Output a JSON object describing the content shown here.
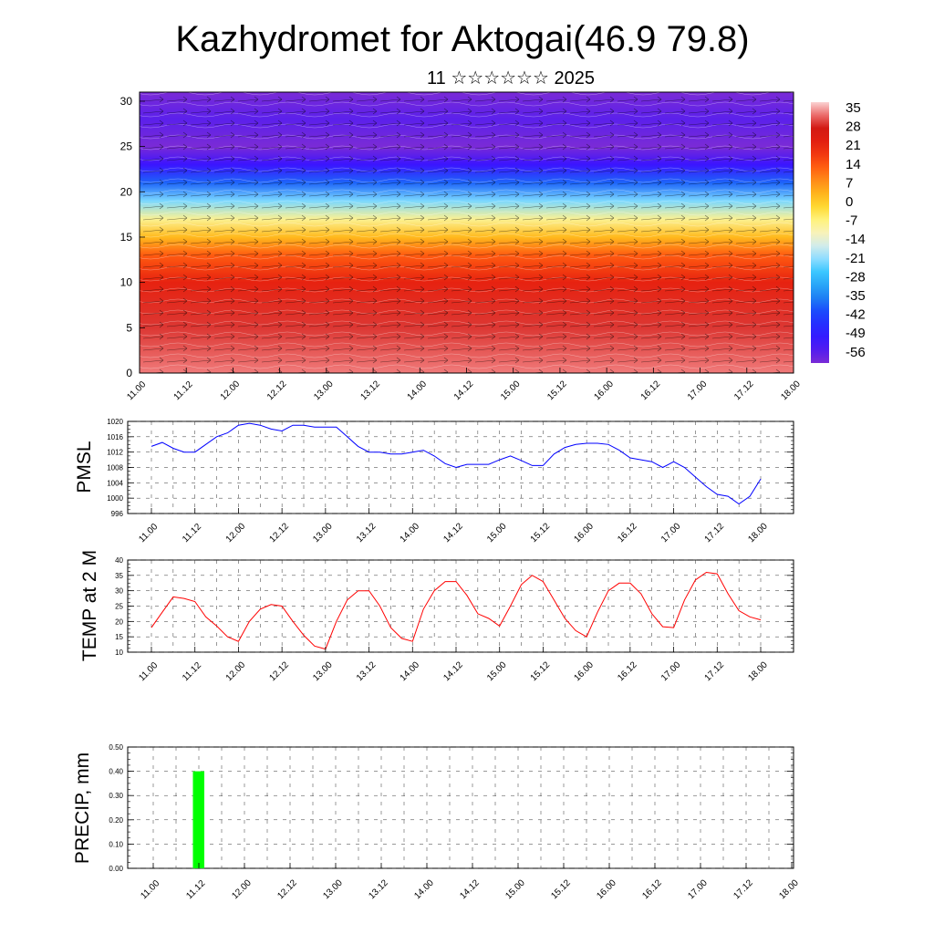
{
  "header": {
    "title": "Kazhydromet for Aktogai(46.9 79.8)",
    "subtitle": "11 ☆☆☆☆☆☆ 2025"
  },
  "time_labels": [
    "11.00",
    "11.12",
    "12.00",
    "12.12",
    "13.00",
    "13.12",
    "14.00",
    "14.12",
    "15.00",
    "15.12",
    "16.00",
    "16.12",
    "17.00",
    "17.12",
    "18.00"
  ],
  "chart_data": [
    {
      "type": "heatmap",
      "name": "cross-section",
      "x_categories": [
        "11.00",
        "11.12",
        "12.00",
        "12.12",
        "13.00",
        "13.12",
        "14.00",
        "14.12",
        "15.00",
        "15.12",
        "16.00",
        "16.12",
        "17.00",
        "17.12",
        "18.00"
      ],
      "y_ticks": [
        0,
        5,
        10,
        15,
        20,
        25,
        30
      ],
      "ylim": [
        0,
        31
      ],
      "colorbar_labels": [
        "35",
        "28",
        "21",
        "14",
        "7",
        "0",
        "-7",
        "-14",
        "-21",
        "-28",
        "-35",
        "-42",
        "-49",
        "-56"
      ],
      "value_range": [
        -60,
        38
      ],
      "approx_profile": [
        {
          "y": 0,
          "value": 34
        },
        {
          "y": 5,
          "value": 30
        },
        {
          "y": 10,
          "value": 22
        },
        {
          "y": 13,
          "value": 14
        },
        {
          "y": 15,
          "value": 3
        },
        {
          "y": 17,
          "value": -8
        },
        {
          "y": 19,
          "value": -22
        },
        {
          "y": 21,
          "value": -38
        },
        {
          "y": 23,
          "value": -52
        },
        {
          "y": 25,
          "value": -62
        },
        {
          "y": 28,
          "value": -56
        },
        {
          "y": 31,
          "value": -60
        }
      ]
    },
    {
      "type": "line",
      "ylabel": "PMSL",
      "ylim": [
        996,
        1020
      ],
      "y_ticks": [
        996,
        1000,
        1004,
        1008,
        1012,
        1016,
        1020
      ],
      "series": [
        {
          "color": "#0000ff",
          "x": [
            0,
            3,
            6,
            9,
            12,
            15,
            18,
            21,
            24,
            27,
            30,
            33,
            36,
            39,
            42,
            45,
            48,
            51,
            54,
            57,
            60,
            63,
            66,
            69,
            72,
            75,
            78,
            81,
            84,
            87,
            90,
            93,
            96,
            99,
            102,
            105,
            108,
            111,
            114,
            117,
            120,
            123,
            126,
            129,
            132,
            135,
            138,
            141,
            144,
            147,
            150,
            153,
            156,
            159,
            162,
            165,
            168
          ],
          "values": [
            1013.5,
            1014.5,
            1013,
            1012,
            1012,
            1014,
            1016,
            1017,
            1019,
            1019.5,
            1019,
            1018,
            1017.5,
            1019,
            1019,
            1018.5,
            1018.5,
            1018.5,
            1016,
            1013.5,
            1012,
            1012,
            1011.5,
            1011.5,
            1012,
            1012.5,
            1011,
            1009,
            1008,
            1008.8,
            1008.8,
            1008.8,
            1010,
            1011,
            1009.8,
            1008.5,
            1008.5,
            1011.5,
            1013.2,
            1014,
            1014.3,
            1014.3,
            1014,
            1012.5,
            1010.5,
            1010,
            1009.5,
            1008,
            1009.5,
            1008,
            1005.5,
            1003,
            1001,
            1000.5,
            998.5,
            1000.5,
            1005
          ]
        }
      ]
    },
    {
      "type": "line",
      "ylabel": "TEMP at 2 M",
      "ylim": [
        10,
        40
      ],
      "y_ticks": [
        10,
        15,
        20,
        25,
        30,
        35,
        40
      ],
      "series": [
        {
          "color": "#ff0000",
          "x": [
            0,
            3,
            6,
            9,
            12,
            15,
            18,
            21,
            24,
            27,
            30,
            33,
            36,
            39,
            42,
            45,
            48,
            51,
            54,
            57,
            60,
            63,
            66,
            69,
            72,
            75,
            78,
            81,
            84,
            87,
            90,
            93,
            96,
            99,
            102,
            105,
            108,
            111,
            114,
            117,
            120,
            123,
            126,
            129,
            132,
            135,
            138,
            141,
            144,
            147,
            150,
            153,
            156,
            159,
            162,
            165,
            168
          ],
          "values": [
            18,
            23,
            28,
            27.5,
            26.5,
            21.5,
            18.5,
            15,
            13.5,
            20,
            24,
            25.5,
            25,
            20,
            15.5,
            12,
            11,
            20,
            27,
            30,
            30,
            25,
            18,
            14.5,
            13.5,
            24,
            30,
            33,
            33,
            28.5,
            22.5,
            21,
            18.5,
            25,
            32,
            35,
            33,
            27,
            21,
            17,
            15,
            23,
            30,
            32.5,
            32.5,
            29,
            22.5,
            18.3,
            18,
            27,
            33.5,
            36,
            35.5,
            29,
            23.5,
            21.5,
            20.5
          ]
        }
      ]
    },
    {
      "type": "bar",
      "ylabel": "PRECIP, mm",
      "ylim": [
        0,
        0.5
      ],
      "y_ticks": [
        "0.00",
        "0.10",
        "0.20",
        "0.30",
        "0.40",
        "0.50"
      ],
      "series": [
        {
          "color": "#00ff00",
          "bars": [
            {
              "x_start": 9,
              "x_end": 12,
              "value": 0.4
            }
          ]
        }
      ]
    }
  ]
}
